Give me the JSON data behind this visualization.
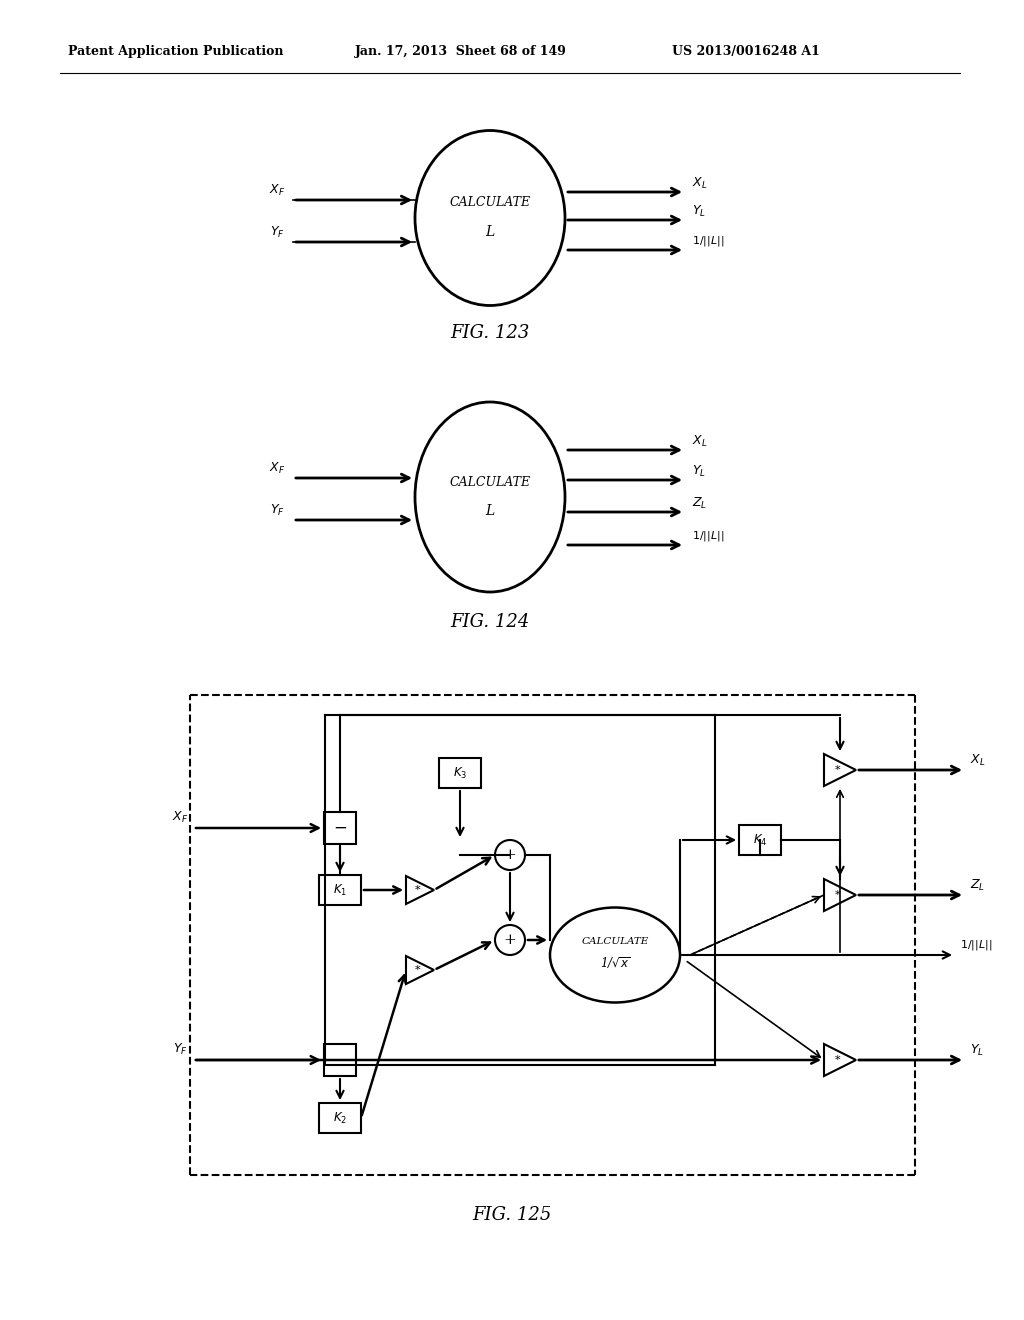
{
  "header_left": "Patent Application Publication",
  "header_mid": "Jan. 17, 2013  Sheet 68 of 149",
  "header_right": "US 2013/0016248 A1",
  "fig123_label": "FIG. 123",
  "fig124_label": "FIG. 124",
  "fig125_label": "FIG. 125",
  "bg_color": "#ffffff"
}
